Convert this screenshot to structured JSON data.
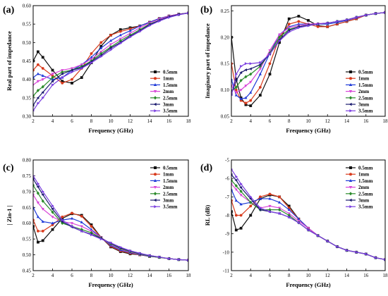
{
  "figure": {
    "panels": [
      "(a)",
      "(b)",
      "(c)",
      "(d)"
    ],
    "legend_items": [
      "0.5mm",
      "1mm",
      "1.5mm",
      "2mm",
      "2.5mm",
      "3mm",
      "3.5mm"
    ],
    "series_colors": [
      "#111111",
      "#d83a1c",
      "#1f3ad8",
      "#d845d8",
      "#2a8a2a",
      "#1a1a6e",
      "#7a3ee0"
    ],
    "markers": [
      "square",
      "circle",
      "triangle-up",
      "triangle-down",
      "diamond",
      "triangle-left",
      "triangle-right"
    ]
  },
  "chart_data": [
    {
      "panel": "(a)",
      "type": "line",
      "xlabel": "Frequency (GHz)",
      "ylabel": "Real part of impedance",
      "xlim": [
        2,
        18
      ],
      "ylim": [
        0.3,
        0.6
      ],
      "xticks": [
        2,
        4,
        6,
        8,
        10,
        12,
        14,
        16,
        18
      ],
      "yticks": [
        0.3,
        0.35,
        0.4,
        0.45,
        0.5,
        0.55,
        0.6
      ],
      "ytick_labels": [
        "0.30",
        "0.35",
        "0.40",
        "0.45",
        "0.50",
        "0.55",
        "0.60"
      ],
      "legend_position": "right",
      "x": [
        2,
        2.5,
        3,
        4,
        5,
        6,
        7,
        8,
        9,
        10,
        11,
        12,
        13,
        14,
        15,
        16,
        17,
        18
      ],
      "series": [
        {
          "name": "0.5mm",
          "values": [
            0.45,
            0.475,
            0.46,
            0.425,
            0.395,
            0.39,
            0.405,
            0.445,
            0.49,
            0.52,
            0.535,
            0.54,
            0.545,
            0.555,
            0.565,
            0.572,
            0.577,
            0.58
          ]
        },
        {
          "name": "1mm",
          "values": [
            0.425,
            0.44,
            0.43,
            0.41,
            0.39,
            0.4,
            0.43,
            0.47,
            0.5,
            0.52,
            0.53,
            0.537,
            0.545,
            0.555,
            0.565,
            0.572,
            0.577,
            0.58
          ]
        },
        {
          "name": "1.5mm",
          "values": [
            0.405,
            0.415,
            0.41,
            0.4,
            0.405,
            0.425,
            0.44,
            0.46,
            0.485,
            0.505,
            0.52,
            0.532,
            0.545,
            0.555,
            0.565,
            0.572,
            0.577,
            0.58
          ]
        },
        {
          "name": "2mm",
          "values": [
            0.385,
            0.395,
            0.4,
            0.415,
            0.425,
            0.43,
            0.44,
            0.455,
            0.475,
            0.495,
            0.51,
            0.525,
            0.54,
            0.553,
            0.563,
            0.572,
            0.577,
            0.58
          ]
        },
        {
          "name": "2.5mm",
          "values": [
            0.355,
            0.37,
            0.38,
            0.405,
            0.42,
            0.425,
            0.435,
            0.45,
            0.47,
            0.488,
            0.505,
            0.52,
            0.535,
            0.55,
            0.56,
            0.57,
            0.576,
            0.58
          ]
        },
        {
          "name": "3mm",
          "values": [
            0.33,
            0.35,
            0.365,
            0.395,
            0.415,
            0.425,
            0.432,
            0.448,
            0.465,
            0.485,
            0.5,
            0.517,
            0.532,
            0.548,
            0.56,
            0.57,
            0.576,
            0.58
          ]
        },
        {
          "name": "3.5mm",
          "values": [
            0.315,
            0.335,
            0.35,
            0.385,
            0.405,
            0.42,
            0.43,
            0.445,
            0.462,
            0.48,
            0.498,
            0.515,
            0.53,
            0.546,
            0.558,
            0.568,
            0.575,
            0.58
          ]
        }
      ]
    },
    {
      "panel": "(b)",
      "type": "line",
      "xlabel": "Frequency (GHz)",
      "ylabel": "Imaginary part of impedance",
      "xlim": [
        2,
        18
      ],
      "ylim": [
        0.05,
        0.26
      ],
      "xticks": [
        2,
        4,
        6,
        8,
        10,
        12,
        14,
        16,
        18
      ],
      "yticks": [
        0.05,
        0.1,
        0.15,
        0.2,
        0.25
      ],
      "ytick_labels": [
        "0.05",
        "0.10",
        "0.15",
        "0.20",
        "0.25"
      ],
      "legend_position": "right",
      "x": [
        2,
        2.5,
        3,
        3.5,
        4,
        5,
        6,
        7,
        8,
        9,
        10,
        11,
        12,
        13,
        14,
        15,
        16,
        17,
        18
      ],
      "series": [
        {
          "name": "0.5mm",
          "values": [
            0.2,
            0.12,
            0.085,
            0.072,
            0.07,
            0.09,
            0.13,
            0.19,
            0.235,
            0.24,
            0.232,
            0.222,
            0.22,
            0.225,
            0.23,
            0.235,
            0.242,
            0.245,
            0.247
          ]
        },
        {
          "name": "1mm",
          "values": [
            0.15,
            0.1,
            0.08,
            0.075,
            0.08,
            0.105,
            0.15,
            0.2,
            0.225,
            0.23,
            0.225,
            0.22,
            0.22,
            0.225,
            0.23,
            0.235,
            0.242,
            0.245,
            0.247
          ]
        },
        {
          "name": "1.5mm",
          "values": [
            0.12,
            0.09,
            0.083,
            0.085,
            0.095,
            0.13,
            0.17,
            0.205,
            0.22,
            0.225,
            0.225,
            0.225,
            0.225,
            0.228,
            0.232,
            0.237,
            0.242,
            0.245,
            0.247
          ]
        },
        {
          "name": "2mm",
          "values": [
            0.108,
            0.095,
            0.1,
            0.108,
            0.115,
            0.14,
            0.175,
            0.205,
            0.218,
            0.222,
            0.225,
            0.226,
            0.227,
            0.23,
            0.233,
            0.237,
            0.242,
            0.245,
            0.247
          ]
        },
        {
          "name": "2.5mm",
          "values": [
            0.098,
            0.105,
            0.118,
            0.125,
            0.13,
            0.145,
            0.17,
            0.2,
            0.215,
            0.22,
            0.223,
            0.225,
            0.227,
            0.23,
            0.233,
            0.238,
            0.242,
            0.245,
            0.247
          ]
        },
        {
          "name": "3mm",
          "values": [
            0.092,
            0.118,
            0.133,
            0.138,
            0.14,
            0.148,
            0.168,
            0.195,
            0.213,
            0.22,
            0.223,
            0.225,
            0.227,
            0.23,
            0.233,
            0.238,
            0.242,
            0.245,
            0.247
          ]
        },
        {
          "name": "3.5mm",
          "values": [
            0.09,
            0.13,
            0.145,
            0.15,
            0.15,
            0.152,
            0.168,
            0.193,
            0.21,
            0.218,
            0.222,
            0.225,
            0.227,
            0.23,
            0.233,
            0.238,
            0.242,
            0.245,
            0.247
          ]
        }
      ]
    },
    {
      "panel": "(c)",
      "type": "line",
      "xlabel": "Frequency (GHz)",
      "ylabel": "| Zin-1 |",
      "xlim": [
        2,
        18
      ],
      "ylim": [
        0.45,
        0.8
      ],
      "xticks": [
        2,
        4,
        6,
        8,
        10,
        12,
        14,
        16,
        18
      ],
      "yticks": [
        0.45,
        0.5,
        0.55,
        0.6,
        0.65,
        0.7,
        0.75,
        0.8
      ],
      "ytick_labels": [
        "0.45",
        "0.50",
        "0.55",
        "0.60",
        "0.65",
        "0.70",
        "0.75",
        "0.80"
      ],
      "legend_position": "top-right",
      "x": [
        2,
        2.5,
        3,
        4,
        5,
        6,
        7,
        8,
        9,
        10,
        11,
        12,
        13,
        14,
        15,
        16,
        17,
        18
      ],
      "series": [
        {
          "name": "0.5mm",
          "values": [
            0.59,
            0.54,
            0.545,
            0.58,
            0.615,
            0.63,
            0.625,
            0.595,
            0.555,
            0.525,
            0.51,
            0.503,
            0.5,
            0.495,
            0.492,
            0.488,
            0.485,
            0.483
          ]
        },
        {
          "name": "1mm",
          "values": [
            0.61,
            0.575,
            0.575,
            0.595,
            0.62,
            0.632,
            0.622,
            0.59,
            0.555,
            0.527,
            0.512,
            0.505,
            0.5,
            0.496,
            0.492,
            0.488,
            0.485,
            0.483
          ]
        },
        {
          "name": "1.5mm",
          "values": [
            0.65,
            0.62,
            0.605,
            0.6,
            0.61,
            0.615,
            0.603,
            0.58,
            0.555,
            0.53,
            0.515,
            0.507,
            0.501,
            0.496,
            0.492,
            0.488,
            0.485,
            0.483
          ]
        },
        {
          "name": "2mm",
          "values": [
            0.69,
            0.665,
            0.645,
            0.62,
            0.605,
            0.6,
            0.59,
            0.575,
            0.555,
            0.533,
            0.518,
            0.508,
            0.502,
            0.497,
            0.492,
            0.488,
            0.485,
            0.483
          ]
        },
        {
          "name": "2.5mm",
          "values": [
            0.72,
            0.695,
            0.67,
            0.635,
            0.6,
            0.59,
            0.58,
            0.57,
            0.553,
            0.535,
            0.52,
            0.51,
            0.503,
            0.497,
            0.492,
            0.488,
            0.485,
            0.483
          ]
        },
        {
          "name": "3mm",
          "values": [
            0.74,
            0.715,
            0.69,
            0.645,
            0.605,
            0.588,
            0.575,
            0.565,
            0.552,
            0.537,
            0.522,
            0.512,
            0.504,
            0.498,
            0.493,
            0.488,
            0.485,
            0.483
          ]
        },
        {
          "name": "3.5mm",
          "values": [
            0.75,
            0.725,
            0.7,
            0.655,
            0.61,
            0.59,
            0.575,
            0.563,
            0.55,
            0.538,
            0.524,
            0.513,
            0.505,
            0.498,
            0.493,
            0.488,
            0.485,
            0.483
          ]
        }
      ]
    },
    {
      "panel": "(d)",
      "type": "line",
      "xlabel": "Frequency (GHz)",
      "ylabel": "RL (dB)",
      "xlim": [
        2,
        18
      ],
      "ylim": [
        -11,
        -5
      ],
      "xticks": [
        2,
        4,
        6,
        8,
        10,
        12,
        14,
        16,
        18
      ],
      "yticks": [
        -11,
        -10,
        -9,
        -8,
        -7,
        -6,
        -5
      ],
      "ytick_labels": [
        "-11",
        "-10",
        "-9",
        "-8",
        "-7",
        "-6",
        "-5"
      ],
      "legend_position": "top-right",
      "x": [
        2,
        2.5,
        3,
        4,
        5,
        6,
        7,
        8,
        9,
        10,
        11,
        12,
        13,
        14,
        15,
        16,
        17,
        18
      ],
      "series": [
        {
          "name": "0.5mm",
          "values": [
            -7.8,
            -8.8,
            -8.7,
            -8.0,
            -7.1,
            -6.9,
            -7.0,
            -7.5,
            -8.2,
            -8.7,
            -9.1,
            -9.4,
            -9.7,
            -9.9,
            -10.0,
            -10.1,
            -10.3,
            -10.4
          ]
        },
        {
          "name": "1mm",
          "values": [
            -7.2,
            -8.0,
            -8.0,
            -7.5,
            -7.0,
            -6.85,
            -7.0,
            -7.6,
            -8.2,
            -8.7,
            -9.1,
            -9.4,
            -9.7,
            -9.9,
            -10.0,
            -10.1,
            -10.3,
            -10.4
          ]
        },
        {
          "name": "1.5mm",
          "values": [
            -6.6,
            -7.2,
            -7.4,
            -7.3,
            -7.1,
            -7.1,
            -7.3,
            -7.7,
            -8.2,
            -8.7,
            -9.1,
            -9.4,
            -9.7,
            -9.9,
            -10.0,
            -10.1,
            -10.3,
            -10.4
          ]
        },
        {
          "name": "2mm",
          "values": [
            -6.3,
            -6.6,
            -6.9,
            -7.3,
            -7.6,
            -7.5,
            -7.6,
            -7.9,
            -8.3,
            -8.7,
            -9.1,
            -9.4,
            -9.7,
            -9.9,
            -10.0,
            -10.1,
            -10.3,
            -10.4
          ]
        },
        {
          "name": "2.5mm",
          "values": [
            -6.1,
            -6.4,
            -6.7,
            -7.3,
            -7.7,
            -7.7,
            -7.7,
            -8.0,
            -8.4,
            -8.8,
            -9.1,
            -9.4,
            -9.7,
            -9.9,
            -10.0,
            -10.1,
            -10.3,
            -10.4
          ]
        },
        {
          "name": "3mm",
          "values": [
            -5.8,
            -6.1,
            -6.5,
            -7.1,
            -7.7,
            -7.8,
            -7.9,
            -8.1,
            -8.4,
            -8.8,
            -9.1,
            -9.4,
            -9.7,
            -9.9,
            -10.0,
            -10.1,
            -10.3,
            -10.4
          ]
        },
        {
          "name": "3.5mm",
          "values": [
            -5.5,
            -5.9,
            -6.3,
            -7.0,
            -7.6,
            -7.8,
            -7.9,
            -8.1,
            -8.4,
            -8.8,
            -9.1,
            -9.4,
            -9.7,
            -9.9,
            -10.0,
            -10.1,
            -10.3,
            -10.4
          ]
        }
      ]
    }
  ]
}
